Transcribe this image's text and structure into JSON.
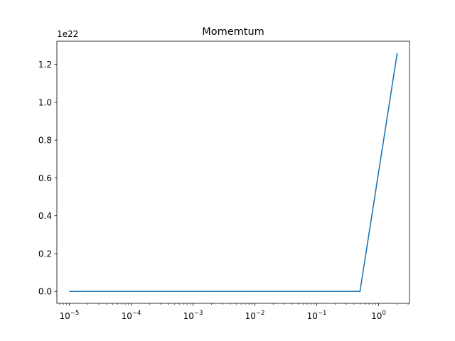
{
  "chart_data": {
    "type": "line",
    "title": "Momemtum",
    "xlabel": "",
    "ylabel": "",
    "xscale": "log",
    "y_offset_label": "1e22",
    "grid": false,
    "xlim": [
      6.3e-06,
      3.16
    ],
    "ylim": [
      -0.063,
      1.323
    ],
    "x_ticks": [
      {
        "value": 1e-05,
        "label": "10^-5"
      },
      {
        "value": 0.0001,
        "label": "10^-4"
      },
      {
        "value": 0.001,
        "label": "10^-3"
      },
      {
        "value": 0.01,
        "label": "10^-2"
      },
      {
        "value": 0.1,
        "label": "10^-1"
      },
      {
        "value": 1,
        "label": "10^0"
      }
    ],
    "y_ticks": [
      {
        "value": 0.0,
        "label": "0.0"
      },
      {
        "value": 0.2,
        "label": "0.2"
      },
      {
        "value": 0.4,
        "label": "0.4"
      },
      {
        "value": 0.6,
        "label": "0.6"
      },
      {
        "value": 0.8,
        "label": "0.8"
      },
      {
        "value": 1.0,
        "label": "1.0"
      },
      {
        "value": 1.2,
        "label": "1.2"
      }
    ],
    "series": [
      {
        "color": "#1f77b4",
        "x": [
          1e-05,
          0.0001,
          0.001,
          0.01,
          0.1,
          0.5,
          2.0
        ],
        "y": [
          0,
          0,
          0,
          0,
          0,
          0,
          1.26
        ]
      }
    ]
  }
}
